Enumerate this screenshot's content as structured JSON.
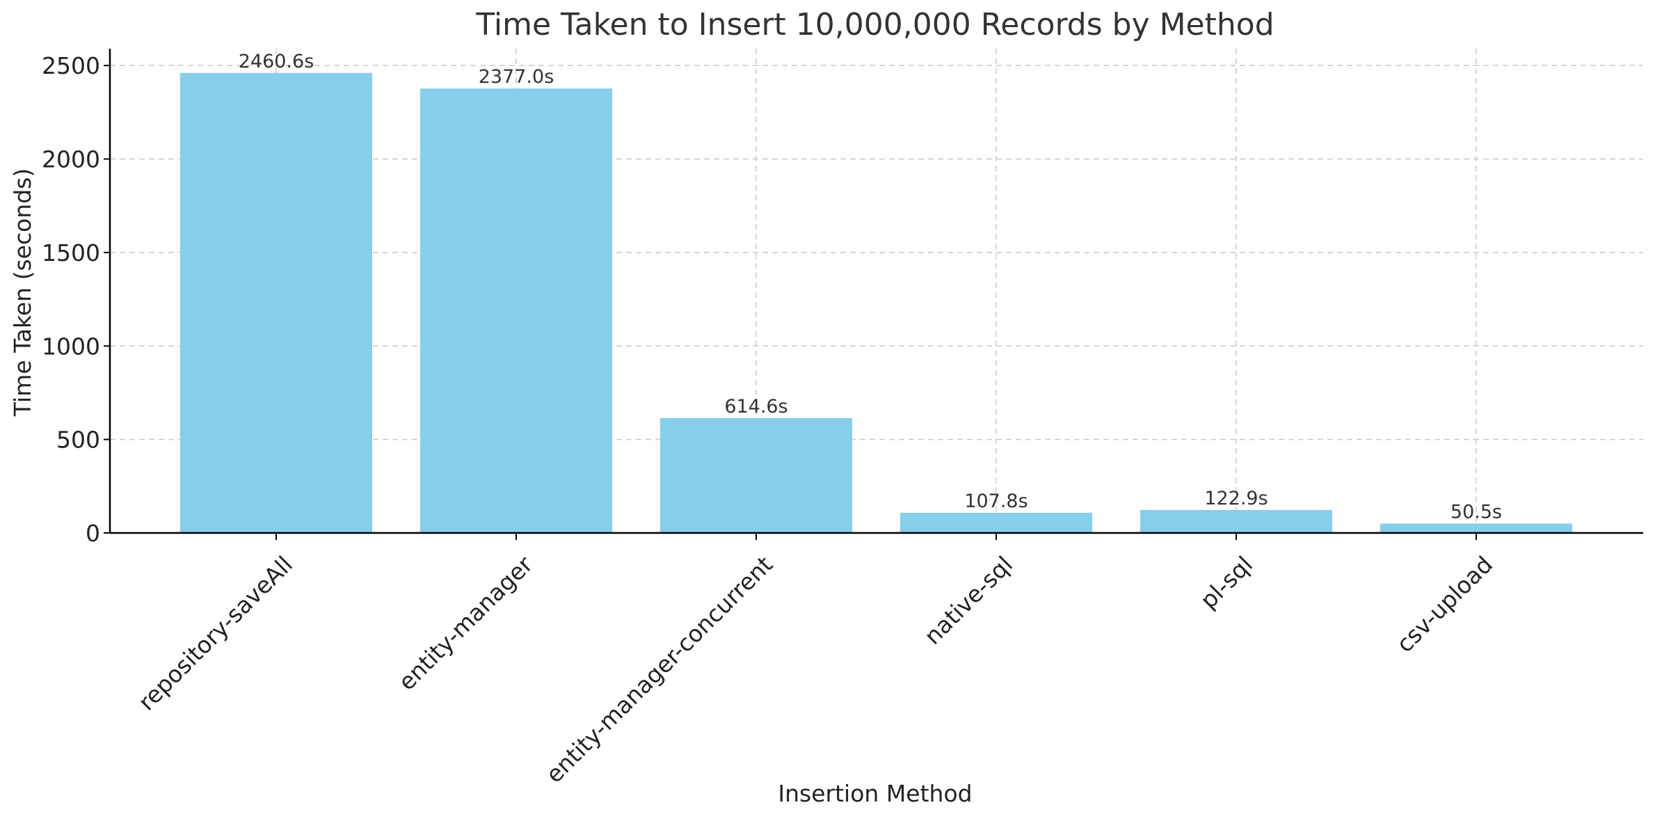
{
  "chart_data": {
    "type": "bar",
    "title": "Time Taken to Insert 10,000,000 Records by Method",
    "xlabel": "Insertion Method",
    "ylabel": "Time Taken (seconds)",
    "categories": [
      "repository-saveAll",
      "entity-manager",
      "entity-manager-concurrent",
      "native-sql",
      "pl-sql",
      "csv-upload"
    ],
    "values": [
      2460.6,
      2377.0,
      614.6,
      107.8,
      122.9,
      50.5
    ],
    "value_labels": [
      "2460.6s",
      "2377.0s",
      "614.6s",
      "107.8s",
      "122.9s",
      "50.5s"
    ],
    "y_ticks": [
      0,
      500,
      1000,
      1500,
      2000,
      2500
    ],
    "ylim": [
      0,
      2590
    ],
    "grid": true,
    "bar_color": "#87CEEB"
  }
}
